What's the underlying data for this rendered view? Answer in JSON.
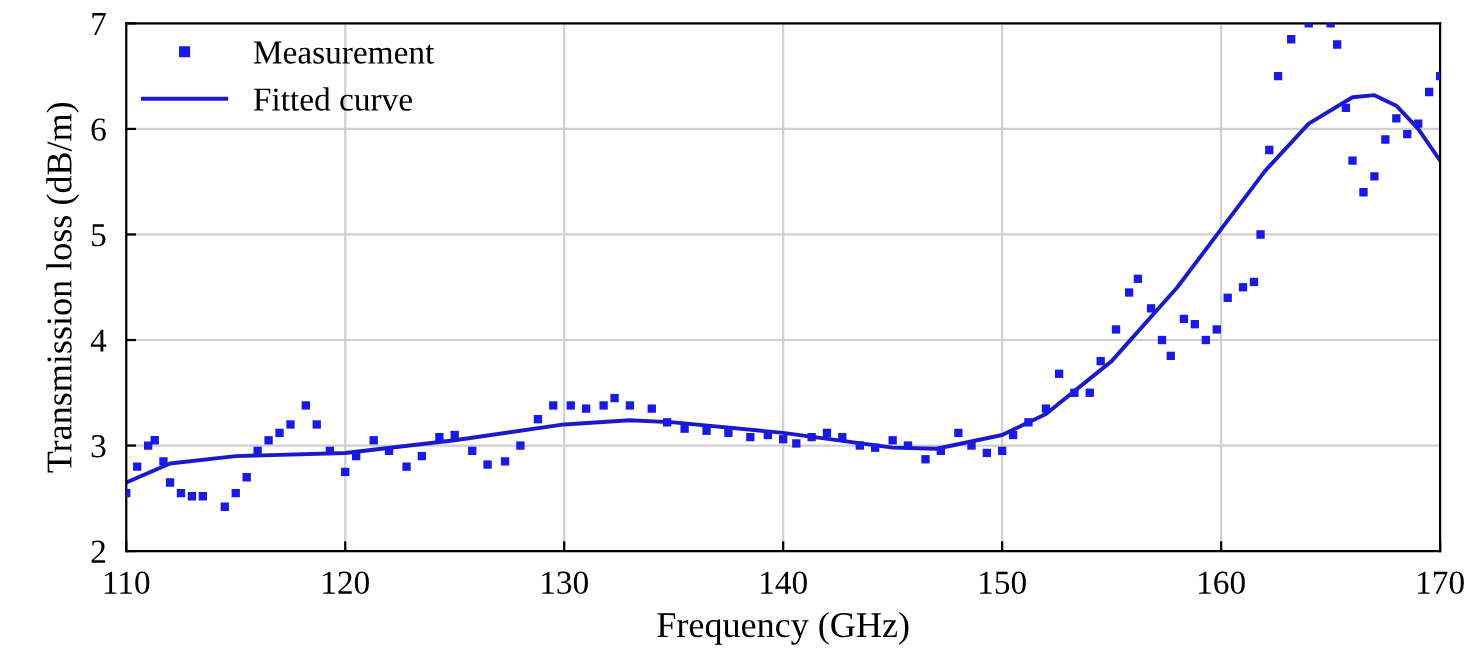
{
  "chart_data": {
    "type": "scatter",
    "xlabel": "Frequency (GHz)",
    "ylabel": "Transmission loss (dB/m)",
    "xlim": [
      110,
      170
    ],
    "xticks": [
      110,
      120,
      130,
      140,
      150,
      160,
      170
    ],
    "ylim": [
      2,
      7
    ],
    "yticks": [
      2,
      3,
      4,
      5,
      6,
      7
    ],
    "grid": true,
    "legend": "top left",
    "series": [
      {
        "name": "Measurement",
        "marker": "square",
        "color": "#1a1ae6",
        "x": [
          110,
          110.5,
          111,
          111.3,
          111.7,
          112,
          112.5,
          113,
          113.5,
          114.5,
          115,
          115.5,
          116,
          116.5,
          117,
          117.5,
          118.2,
          118.7,
          119.3,
          120,
          120.5,
          121.3,
          122,
          122.8,
          123.5,
          124.3,
          125,
          125.8,
          126.5,
          127.3,
          128,
          128.8,
          129.5,
          130.3,
          131,
          131.8,
          132.3,
          133,
          134,
          134.7,
          135.5,
          136.5,
          137.5,
          138.5,
          139.3,
          140,
          140.6,
          141.3,
          142,
          142.7,
          143.5,
          144.2,
          145,
          145.7,
          146.5,
          147.2,
          148,
          148.6,
          149.3,
          150,
          150.5,
          151.2,
          152,
          152.6,
          153.3,
          154,
          154.5,
          155.2,
          155.8,
          156.2,
          156.8,
          157.3,
          157.7,
          158.3,
          158.8,
          159.3,
          159.8,
          160.3,
          161,
          161.5,
          161.8,
          162.2,
          162.6,
          163.2,
          164,
          165,
          165.3,
          165.7,
          166,
          166.5,
          167,
          167.5,
          168,
          168.5,
          169,
          169.5,
          170
        ],
        "values": [
          2.55,
          2.8,
          3.0,
          3.05,
          2.85,
          2.65,
          2.55,
          2.52,
          2.52,
          2.42,
          2.55,
          2.7,
          2.95,
          3.05,
          3.12,
          3.2,
          3.38,
          3.2,
          2.95,
          2.75,
          2.9,
          3.05,
          2.95,
          2.8,
          2.9,
          3.08,
          3.1,
          2.95,
          2.82,
          2.85,
          3.0,
          3.25,
          3.38,
          3.38,
          3.35,
          3.38,
          3.45,
          3.38,
          3.35,
          3.22,
          3.16,
          3.14,
          3.12,
          3.08,
          3.1,
          3.06,
          3.02,
          3.08,
          3.12,
          3.08,
          3.0,
          2.98,
          3.05,
          3.0,
          2.87,
          2.95,
          3.12,
          3.0,
          2.93,
          2.95,
          3.1,
          3.22,
          3.35,
          3.68,
          3.5,
          3.5,
          3.8,
          4.1,
          4.45,
          4.58,
          4.3,
          4.0,
          3.85,
          4.2,
          4.15,
          4.0,
          4.1,
          4.4,
          4.5,
          4.55,
          5.0,
          5.8,
          6.5,
          6.85,
          7.0,
          7.0,
          6.8,
          6.2,
          5.7,
          5.4,
          5.55,
          5.9,
          6.1,
          5.95,
          6.05,
          6.35,
          6.5
        ]
      },
      {
        "name": "Fitted curve",
        "type": "line",
        "marker": "none",
        "line_style": "solid",
        "color": "#1a1acc",
        "x": [
          110,
          112,
          115,
          120,
          125,
          130,
          133,
          135,
          140,
          145,
          147,
          150,
          152,
          155,
          158,
          160,
          162,
          164,
          166,
          167,
          168,
          169,
          170
        ],
        "values": [
          2.65,
          2.83,
          2.9,
          2.93,
          3.05,
          3.2,
          3.24,
          3.22,
          3.12,
          2.98,
          2.97,
          3.1,
          3.3,
          3.8,
          4.5,
          5.05,
          5.6,
          6.05,
          6.3,
          6.32,
          6.22,
          6.0,
          5.7
        ]
      }
    ]
  }
}
